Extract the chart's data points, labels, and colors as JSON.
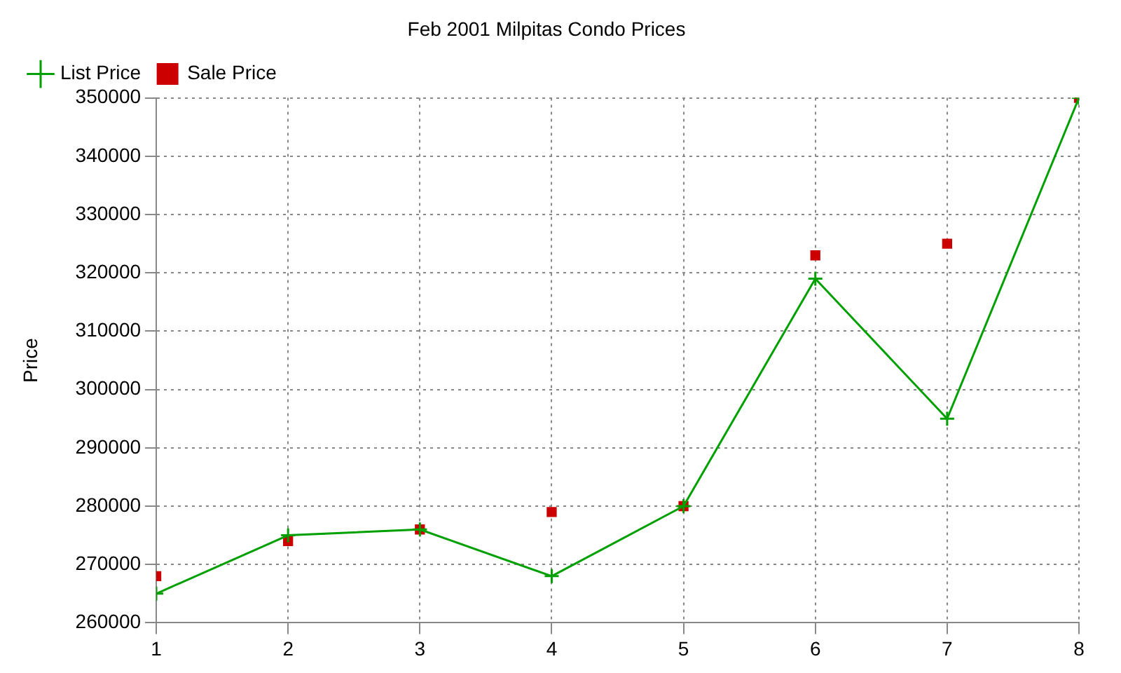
{
  "chart_data": {
    "type": "line",
    "title": "Feb 2001 Milpitas Condo Prices",
    "ylabel": "Price",
    "x": [
      1,
      2,
      3,
      4,
      5,
      6,
      7,
      8
    ],
    "series": [
      {
        "name": "List Price",
        "type": "line",
        "color": "#00a000",
        "marker": "cross",
        "values": [
          265000,
          275000,
          276000,
          268000,
          280000,
          319000,
          295000,
          350000
        ]
      },
      {
        "name": "Sale Price",
        "type": "scatter",
        "color": "#cc0000",
        "marker": "square",
        "values": [
          268000,
          274000,
          276000,
          279000,
          280000,
          323000,
          325000,
          350000
        ]
      }
    ],
    "xlim": [
      1,
      8
    ],
    "xticks": [
      1,
      2,
      3,
      4,
      5,
      6,
      7,
      8
    ],
    "ylim": [
      260000,
      350000
    ],
    "yticks": [
      260000,
      270000,
      280000,
      290000,
      300000,
      310000,
      320000,
      330000,
      340000,
      350000
    ],
    "grid": true,
    "legend": "top left",
    "line_style": "solid"
  }
}
